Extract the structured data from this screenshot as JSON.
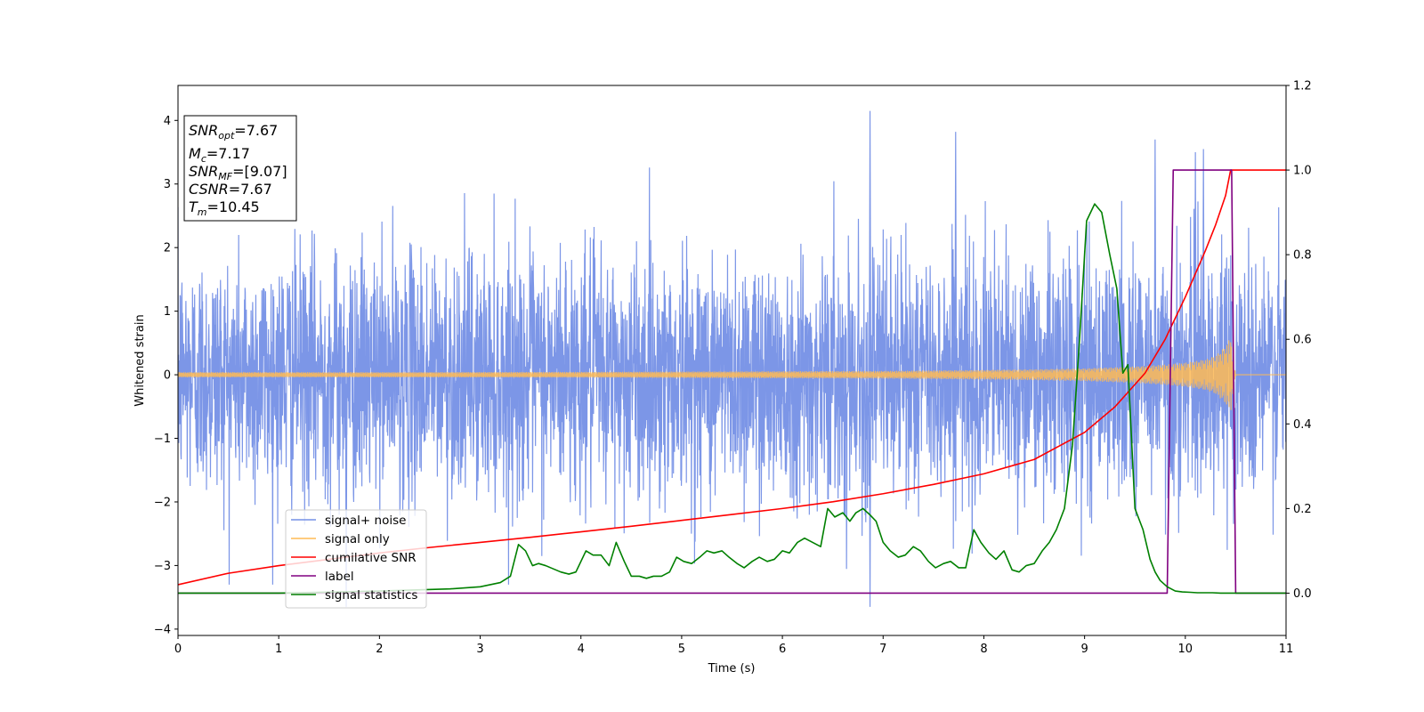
{
  "chart_data": {
    "type": "line",
    "title": "",
    "xlabel": "Time (s)",
    "ylabel": "Whitened strain",
    "y2label": "",
    "xlim": [
      0,
      11
    ],
    "ylim": [
      -4.1,
      4.55
    ],
    "y2lim": [
      -0.1,
      1.2
    ],
    "x_ticks": [
      "0",
      "1",
      "2",
      "3",
      "4",
      "5",
      "6",
      "7",
      "8",
      "9",
      "10",
      "11"
    ],
    "y_ticks": [
      "4",
      "3",
      "2",
      "1",
      "0",
      "−1",
      "−2",
      "−3",
      "−4"
    ],
    "y2_ticks": [
      "1.2",
      "1.0",
      "0.8",
      "0.6",
      "0.4",
      "0.2",
      "0.0"
    ],
    "grid": false,
    "legend_position": "lower-left",
    "annotation": {
      "snr_opt": {
        "base": "SNR",
        "sub": "opt",
        "value": "=7.67"
      },
      "mc": {
        "base": "M",
        "sub": "c",
        "value": "=7.17"
      },
      "snr_mf": {
        "base": "SNR",
        "sub": "MF",
        "value": "=[9.07]"
      },
      "csnr": {
        "base": "CSNR",
        "value": "=7.67"
      },
      "tm": {
        "base": "T",
        "sub": "m",
        "value": "=10.45"
      }
    },
    "series": [
      {
        "name": "signal+ noise",
        "axis": "left",
        "color": "#7590e6",
        "description_values": "whitened noise, approx. Gaussian with std 1, range about -3.7 to 4.2",
        "noted_extremes": [
          [
            6.87,
            4.15
          ],
          [
            6.87,
            -3.65
          ],
          [
            10.18,
            3.55
          ],
          [
            10.1,
            3.5
          ],
          [
            7.72,
            3.82
          ],
          [
            9.7,
            3.7
          ],
          [
            1.67,
            -3.65
          ]
        ]
      },
      {
        "name": "signal only",
        "axis": "left",
        "color": "#ffbb55",
        "envelope": {
          "x": [
            0,
            2,
            4,
            5,
            6,
            7,
            8,
            8.5,
            9,
            9.5,
            9.8,
            10,
            10.2,
            10.3,
            10.4,
            10.45,
            10.5,
            11
          ],
          "amp": [
            0.04,
            0.04,
            0.045,
            0.05,
            0.055,
            0.06,
            0.075,
            0.085,
            0.1,
            0.13,
            0.16,
            0.19,
            0.24,
            0.3,
            0.45,
            0.6,
            0,
            0
          ]
        }
      },
      {
        "name": "cumilative SNR",
        "axis": "right",
        "color": "#ff0000",
        "x": [
          0,
          0.5,
          1,
          1.5,
          2,
          2.5,
          3,
          3.5,
          4,
          4.5,
          5,
          5.5,
          6,
          6.5,
          7,
          7.5,
          8,
          8.5,
          9,
          9.3,
          9.6,
          9.8,
          10,
          10.2,
          10.3,
          10.4,
          10.45,
          11
        ],
        "y": [
          0.02,
          0.047,
          0.065,
          0.08,
          0.095,
          0.108,
          0.12,
          0.132,
          0.145,
          0.158,
          0.172,
          0.186,
          0.2,
          0.216,
          0.235,
          0.257,
          0.282,
          0.316,
          0.38,
          0.44,
          0.52,
          0.6,
          0.7,
          0.81,
          0.87,
          0.94,
          1.0,
          1.0
        ]
      },
      {
        "name": "label",
        "axis": "right",
        "color": "#800080",
        "x": [
          0,
          9.82,
          9.88,
          10.46,
          10.5,
          11
        ],
        "y": [
          0,
          0,
          1.0,
          1.0,
          0,
          0
        ]
      },
      {
        "name": "signal statistics",
        "axis": "right",
        "color": "#008000",
        "x": [
          0,
          1.0,
          2.0,
          2.7,
          3.0,
          3.2,
          3.3,
          3.38,
          3.45,
          3.52,
          3.58,
          3.65,
          3.7,
          3.8,
          3.88,
          3.95,
          4.05,
          4.12,
          4.2,
          4.28,
          4.35,
          4.43,
          4.5,
          4.58,
          4.65,
          4.72,
          4.8,
          4.88,
          4.95,
          5.02,
          5.1,
          5.18,
          5.25,
          5.32,
          5.4,
          5.47,
          5.55,
          5.62,
          5.7,
          5.77,
          5.85,
          5.92,
          6.0,
          6.07,
          6.15,
          6.22,
          6.3,
          6.38,
          6.45,
          6.52,
          6.6,
          6.67,
          6.73,
          6.8,
          6.87,
          6.93,
          7.0,
          7.07,
          7.15,
          7.22,
          7.3,
          7.37,
          7.45,
          7.52,
          7.6,
          7.67,
          7.75,
          7.82,
          7.9,
          7.97,
          8.05,
          8.12,
          8.2,
          8.28,
          8.35,
          8.42,
          8.5,
          8.58,
          8.65,
          8.72,
          8.8,
          8.88,
          8.95,
          9.02,
          9.1,
          9.17,
          9.25,
          9.32,
          9.38,
          9.43,
          9.5,
          9.58,
          9.65,
          9.7,
          9.75,
          9.82,
          9.9,
          9.97,
          10.05,
          10.12,
          10.2,
          10.27,
          10.35,
          10.45,
          10.6,
          10.8,
          11
        ],
        "y": [
          0,
          0.0,
          0.005,
          0.01,
          0.015,
          0.025,
          0.04,
          0.115,
          0.1,
          0.065,
          0.07,
          0.065,
          0.06,
          0.05,
          0.045,
          0.05,
          0.1,
          0.09,
          0.09,
          0.065,
          0.12,
          0.075,
          0.04,
          0.04,
          0.035,
          0.04,
          0.04,
          0.05,
          0.085,
          0.075,
          0.07,
          0.085,
          0.1,
          0.095,
          0.1,
          0.085,
          0.07,
          0.06,
          0.075,
          0.085,
          0.075,
          0.08,
          0.1,
          0.095,
          0.12,
          0.13,
          0.12,
          0.11,
          0.2,
          0.18,
          0.19,
          0.17,
          0.19,
          0.2,
          0.185,
          0.17,
          0.12,
          0.1,
          0.085,
          0.09,
          0.11,
          0.1,
          0.075,
          0.06,
          0.07,
          0.075,
          0.06,
          0.06,
          0.15,
          0.12,
          0.095,
          0.08,
          0.1,
          0.055,
          0.05,
          0.065,
          0.07,
          0.1,
          0.12,
          0.15,
          0.2,
          0.35,
          0.6,
          0.88,
          0.92,
          0.9,
          0.8,
          0.72,
          0.52,
          0.54,
          0.2,
          0.15,
          0.08,
          0.05,
          0.03,
          0.015,
          0.005,
          0.003,
          0.002,
          0.001,
          0.001,
          0.001,
          0.0,
          0.0,
          0.0,
          0.0,
          0.0
        ]
      }
    ]
  }
}
